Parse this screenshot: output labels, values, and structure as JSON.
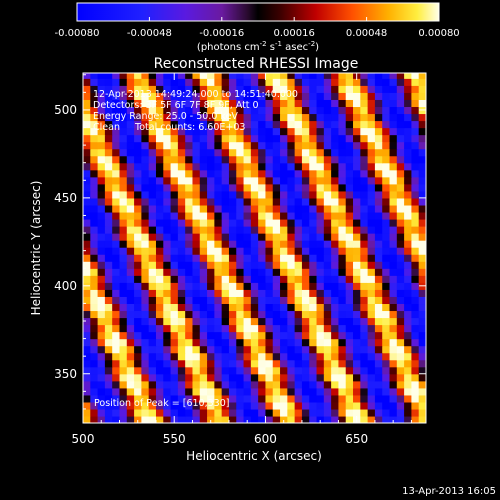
{
  "chart_data": {
    "type": "heatmap",
    "title": "Reconstructed RHESSI Image",
    "xlabel": "Heliocentric X (arcsec)",
    "ylabel": "Heliocentric Y (arcsec)",
    "xlim": [
      500,
      688
    ],
    "ylim": [
      322,
      521
    ],
    "xticks": [
      500,
      550,
      600,
      650
    ],
    "yticks": [
      350,
      400,
      450,
      500
    ],
    "colorbar": {
      "min": -0.0008,
      "max": 0.0008,
      "ticks": [
        "-0.00080",
        "-0.00048",
        "-0.00016",
        "0.00016",
        "0.00048",
        "0.00080"
      ],
      "label_main": "(photons cm",
      "label_sup1": "-2",
      "label_mid1": " s",
      "label_sup2": "-1",
      "label_mid2": " asec",
      "label_sup3": "-2",
      "label_end": ")"
    },
    "annotations": [
      "12-Apr-2013 14:49:24.000 to 14:51:40.000",
      "Detectors: 3F 5F 6F 7F 8F 9F, Att 0",
      "Energy Range: 25.0 - 50.0 keV",
      "Clean     Total counts: 6.60E+03"
    ],
    "peak_label": "Position of Peak = [610,330]",
    "peak": [
      610,
      330
    ],
    "field_model": {
      "pattern": "diagonal fringes",
      "description_values": {
        "amplitude": 0.0008
      }
    }
  },
  "footer": {
    "timestamp": "13-Apr-2013 16:05"
  }
}
